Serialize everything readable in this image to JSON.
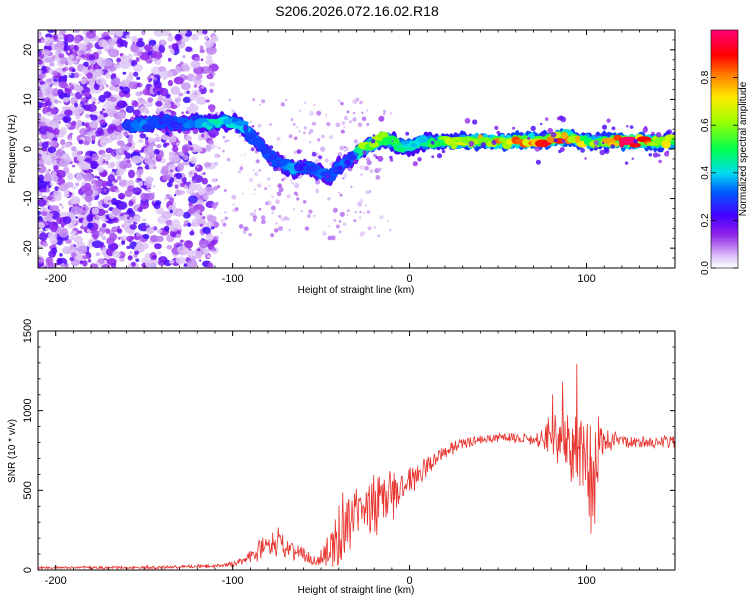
{
  "title": "S206.2026.072.16.02.R18",
  "chart_data": [
    {
      "type": "heatmap",
      "title": "S206.2026.072.16.02.R18",
      "xlabel": "Height of straight line (km)",
      "ylabel": "Frequency (Hz)",
      "xlim": [
        -210,
        150
      ],
      "ylim": [
        -24,
        24
      ],
      "xticks": [
        -200,
        -100,
        0,
        100
      ],
      "yticks": [
        -20,
        -10,
        0,
        10,
        20
      ],
      "colorbar": {
        "label": "Normalized spectral amplitude",
        "range": [
          0.0,
          1.0
        ],
        "ticks": [
          0.0,
          0.2,
          0.4,
          0.6,
          0.8
        ],
        "tick_labels": [
          "0.0",
          "0.2",
          "0.4",
          "0.6",
          "0.8"
        ]
      },
      "ridge": {
        "x": [
          -160,
          -150,
          -140,
          -130,
          -120,
          -112,
          -105,
          -100,
          -95,
          -90,
          -85,
          -80,
          -75,
          -70,
          -65,
          -60,
          -55,
          -50,
          -45,
          -40,
          -35,
          -30,
          -25,
          -20,
          -15,
          -10,
          -5,
          0,
          10,
          20,
          40,
          60,
          80,
          90,
          100,
          110,
          120,
          130,
          140,
          150
        ],
        "freq": [
          4.5,
          5,
          5.5,
          5,
          5.5,
          5,
          5.5,
          5.5,
          4.5,
          3,
          1,
          -1,
          -2.5,
          -3.5,
          -4,
          -3.5,
          -4,
          -5,
          -5.5,
          -3.5,
          -2.5,
          -1,
          0.5,
          1,
          2,
          1.5,
          0.5,
          0.5,
          1.5,
          1.5,
          1.5,
          1.5,
          2,
          2.5,
          1.5,
          1.5,
          1.5,
          1.5,
          1.5,
          1.5
        ],
        "amplitude": [
          0.3,
          0.35,
          0.3,
          0.32,
          0.35,
          0.45,
          0.4,
          0.42,
          0.4,
          0.38,
          0.3,
          0.28,
          0.3,
          0.35,
          0.38,
          0.3,
          0.32,
          0.35,
          0.3,
          0.33,
          0.3,
          0.38,
          0.6,
          0.7,
          0.65,
          0.55,
          0.45,
          0.4,
          0.5,
          0.6,
          0.75,
          0.85,
          0.9,
          0.9,
          0.6,
          0.7,
          0.95,
          0.9,
          0.75,
          0.6
        ]
      }
    },
    {
      "type": "line",
      "xlabel": "Height of straight line (km)",
      "ylabel": "SNR (10 * v/v)",
      "xlim": [
        -210,
        150
      ],
      "ylim": [
        0,
        1500
      ],
      "xticks": [
        -200,
        -100,
        0,
        100
      ],
      "yticks": [
        0,
        500,
        1000,
        1500
      ],
      "color": "#e8342e",
      "series": [
        {
          "name": "SNR",
          "x": [
            -210,
            -180,
            -150,
            -130,
            -110,
            -100,
            -90,
            -85,
            -80,
            -75,
            -70,
            -65,
            -60,
            -55,
            -50,
            -45,
            -40,
            -35,
            -30,
            -25,
            -20,
            -15,
            -10,
            -5,
            0,
            5,
            10,
            15,
            20,
            25,
            30,
            40,
            50,
            60,
            70,
            75,
            80,
            85,
            90,
            95,
            100,
            103,
            105,
            108,
            110,
            120,
            130,
            140,
            150
          ],
          "y": [
            15,
            15,
            15,
            20,
            25,
            35,
            80,
            120,
            150,
            180,
            130,
            120,
            100,
            60,
            70,
            120,
            220,
            300,
            350,
            380,
            420,
            450,
            480,
            510,
            540,
            600,
            650,
            700,
            740,
            770,
            800,
            820,
            830,
            830,
            820,
            830,
            820,
            800,
            780,
            760,
            720,
            600,
            700,
            780,
            800,
            810,
            800,
            800,
            810
          ],
          "amplitude": [
            8,
            8,
            10,
            10,
            12,
            15,
            40,
            60,
            80,
            90,
            60,
            60,
            60,
            40,
            60,
            120,
            200,
            250,
            220,
            220,
            200,
            180,
            150,
            120,
            90,
            70,
            60,
            50,
            40,
            40,
            35,
            30,
            30,
            30,
            40,
            60,
            150,
            200,
            250,
            300,
            350,
            500,
            400,
            200,
            80,
            40,
            40,
            40,
            40
          ]
        }
      ]
    }
  ]
}
